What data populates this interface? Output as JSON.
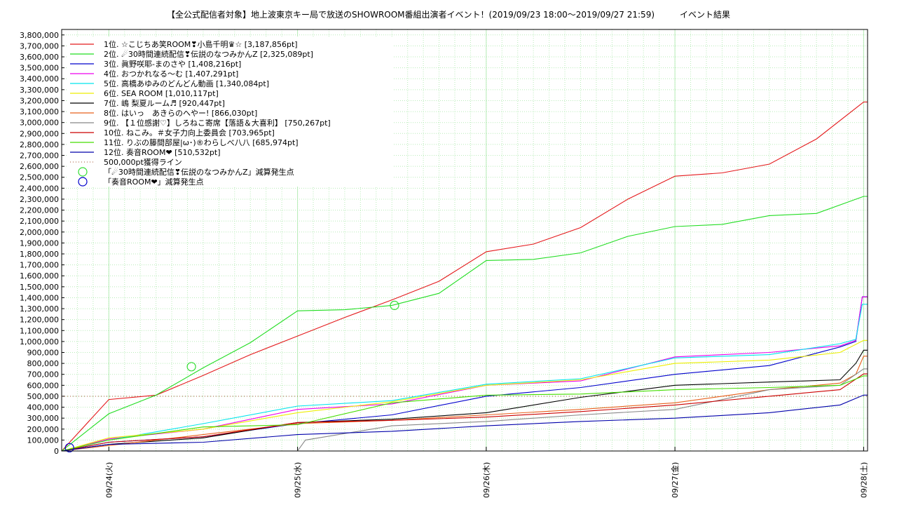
{
  "chart_data": {
    "type": "line",
    "title": "【全公式配信者対象】地上波東京キー局で放送のSHOWROOM番組出演者イベント！(2019/09/23 18:00～2019/09/27 21:59)　　　イベント結果",
    "xlabel": "",
    "ylabel": "",
    "ylim": [
      0,
      3850000
    ],
    "xlim": [
      "2019-09-23 18:00",
      "2019-09-28 00:30"
    ],
    "grid": true,
    "legend_position": "top-left",
    "y_ticks": [
      "0",
      "100,000",
      "200,000",
      "300,000",
      "400,000",
      "500,000",
      "600,000",
      "700,000",
      "800,000",
      "900,000",
      "1,000,000",
      "1,100,000",
      "1,200,000",
      "1,300,000",
      "1,400,000",
      "1,500,000",
      "1,600,000",
      "1,700,000",
      "1,800,000",
      "1,900,000",
      "2,000,000",
      "2,100,000",
      "2,200,000",
      "2,300,000",
      "2,400,000",
      "2,500,000",
      "2,600,000",
      "2,700,000",
      "2,800,000",
      "2,900,000",
      "3,000,000",
      "3,100,000",
      "3,200,000",
      "3,300,000",
      "3,400,000",
      "3,500,000",
      "3,600,000",
      "3,700,000",
      "3,800,000"
    ],
    "x_ticks": [
      {
        "value": "2019-09-24 00:00",
        "label": "09/24(火)"
      },
      {
        "value": "2019-09-25 00:00",
        "label": "09/25(水)"
      },
      {
        "value": "2019-09-26 00:00",
        "label": "09/26(木)"
      },
      {
        "value": "2019-09-27 00:00",
        "label": "09/27(金)"
      },
      {
        "value": "2019-09-28 00:00",
        "label": "09/28(土)"
      }
    ],
    "series": [
      {
        "name": "1位. ☆こじちあ笑ROOM❣小島千明♛☆ [3,187,856pt]",
        "color": "#e41a1c",
        "x": [
          "2019-09-23 18:00",
          "2019-09-24 00:00",
          "2019-09-24 06:00",
          "2019-09-24 12:00",
          "2019-09-24 18:00",
          "2019-09-25 00:00",
          "2019-09-25 06:00",
          "2019-09-25 12:00",
          "2019-09-25 18:00",
          "2019-09-26 00:00",
          "2019-09-26 06:00",
          "2019-09-26 12:00",
          "2019-09-26 18:00",
          "2019-09-27 00:00",
          "2019-09-27 06:00",
          "2019-09-27 12:00",
          "2019-09-27 18:00",
          "2019-09-28 00:00",
          "2019-09-28 00:30"
        ],
        "y": [
          0,
          470000,
          510000,
          690000,
          880000,
          1050000,
          1220000,
          1380000,
          1550000,
          1820000,
          1890000,
          2040000,
          2300000,
          2510000,
          2540000,
          2620000,
          2850000,
          3187856,
          3187856
        ]
      },
      {
        "name": "2位. ☄30時間連続配信❣伝説のなつみかんZ [2,325,089pt]",
        "color": "#22dd22",
        "x": [
          "2019-09-23 18:00",
          "2019-09-24 00:00",
          "2019-09-24 06:00",
          "2019-09-24 12:00",
          "2019-09-24 18:00",
          "2019-09-25 00:00",
          "2019-09-25 06:00",
          "2019-09-25 12:00",
          "2019-09-25 18:00",
          "2019-09-26 00:00",
          "2019-09-26 06:00",
          "2019-09-26 12:00",
          "2019-09-26 18:00",
          "2019-09-27 00:00",
          "2019-09-27 06:00",
          "2019-09-27 12:00",
          "2019-09-27 18:00",
          "2019-09-28 00:00",
          "2019-09-28 00:30"
        ],
        "y": [
          0,
          340000,
          510000,
          760000,
          990000,
          1280000,
          1290000,
          1330000,
          1440000,
          1740000,
          1750000,
          1810000,
          1960000,
          2050000,
          2070000,
          2150000,
          2170000,
          2325089,
          2325089
        ]
      },
      {
        "name": "3位. 眞野咲耶-まのさや [1,408,216pt]",
        "color": "#0000cc",
        "x": [
          "2019-09-23 18:00",
          "2019-09-24 00:00",
          "2019-09-24 12:00",
          "2019-09-25 00:00",
          "2019-09-25 12:00",
          "2019-09-26 00:00",
          "2019-09-26 12:00",
          "2019-09-27 00:00",
          "2019-09-27 12:00",
          "2019-09-27 21:00",
          "2019-09-27 23:00",
          "2019-09-27 23:50",
          "2019-09-28 00:30"
        ],
        "y": [
          0,
          80000,
          130000,
          250000,
          330000,
          500000,
          580000,
          700000,
          780000,
          950000,
          1000000,
          1408216,
          1408216
        ]
      },
      {
        "name": "4位. おつかれなる〜む [1,407,291pt]",
        "color": "#ee00ee",
        "x": [
          "2019-09-23 18:00",
          "2019-09-24 00:00",
          "2019-09-24 12:00",
          "2019-09-25 00:00",
          "2019-09-25 12:00",
          "2019-09-26 00:00",
          "2019-09-26 12:00",
          "2019-09-27 00:00",
          "2019-09-27 12:00",
          "2019-09-27 21:00",
          "2019-09-27 23:00",
          "2019-09-27 23:50",
          "2019-09-28 00:30"
        ],
        "y": [
          0,
          110000,
          200000,
          380000,
          430000,
          600000,
          640000,
          860000,
          900000,
          960000,
          1010000,
          1407291,
          1407291
        ]
      },
      {
        "name": "5位. 高橋あゆみのどんどん動画 [1,340,084pt]",
        "color": "#00e5ee",
        "x": [
          "2019-09-23 18:00",
          "2019-09-24 00:00",
          "2019-09-24 12:00",
          "2019-09-25 00:00",
          "2019-09-25 12:00",
          "2019-09-26 00:00",
          "2019-09-26 12:00",
          "2019-09-27 00:00",
          "2019-09-27 12:00",
          "2019-09-27 21:00",
          "2019-09-27 23:00",
          "2019-09-27 23:50",
          "2019-09-28 00:30"
        ],
        "y": [
          0,
          100000,
          250000,
          410000,
          460000,
          610000,
          660000,
          850000,
          880000,
          980000,
          1020000,
          1340084,
          1340084
        ]
      },
      {
        "name": "6位. SEA ROOM [1,010,117pt]",
        "color": "#eeee00",
        "x": [
          "2019-09-23 18:00",
          "2019-09-24 00:00",
          "2019-09-24 12:00",
          "2019-09-25 00:00",
          "2019-09-25 12:00",
          "2019-09-26 00:00",
          "2019-09-26 12:00",
          "2019-09-27 00:00",
          "2019-09-27 12:00",
          "2019-09-27 21:00",
          "2019-09-28 00:00",
          "2019-09-28 00:30"
        ],
        "y": [
          0,
          120000,
          200000,
          350000,
          450000,
          600000,
          650000,
          800000,
          830000,
          900000,
          1010117,
          1010117
        ]
      },
      {
        "name": "7位. 嶋 梨夏ルーム♬ [920,447pt]",
        "color": "#000000",
        "x": [
          "2019-09-23 18:00",
          "2019-09-24 00:00",
          "2019-09-24 12:00",
          "2019-09-25 00:00",
          "2019-09-25 12:00",
          "2019-09-26 00:00",
          "2019-09-26 12:00",
          "2019-09-27 00:00",
          "2019-09-27 12:00",
          "2019-09-27 21:00",
          "2019-09-27 23:00",
          "2019-09-28 00:00",
          "2019-09-28 00:30"
        ],
        "y": [
          0,
          60000,
          120000,
          260000,
          290000,
          350000,
          490000,
          600000,
          630000,
          650000,
          800000,
          920447,
          920447
        ]
      },
      {
        "name": "8位. はいっ　あきらのへやー! [866,030pt]",
        "color": "#e8601c",
        "x": [
          "2019-09-23 18:00",
          "2019-09-24 00:00",
          "2019-09-24 12:00",
          "2019-09-25 00:00",
          "2019-09-25 12:00",
          "2019-09-26 00:00",
          "2019-09-26 12:00",
          "2019-09-27 00:00",
          "2019-09-27 12:00",
          "2019-09-27 21:00",
          "2019-09-27 23:00",
          "2019-09-28 00:00",
          "2019-09-28 00:30"
        ],
        "y": [
          0,
          50000,
          150000,
          250000,
          280000,
          330000,
          380000,
          440000,
          560000,
          620000,
          700000,
          866030,
          866030
        ]
      },
      {
        "name": "9位. 【１位感謝♡】しろねこ寄席【落語＆大喜利】 [750,267pt]",
        "color": "#888888",
        "x": [
          "2019-09-23 18:00",
          "2019-09-25 00:00",
          "2019-09-25 01:00",
          "2019-09-25 12:00",
          "2019-09-26 00:00",
          "2019-09-26 12:00",
          "2019-09-27 00:00",
          "2019-09-27 12:00",
          "2019-09-27 21:00",
          "2019-09-28 00:00",
          "2019-09-28 00:30"
        ],
        "y": [
          0,
          0,
          100000,
          230000,
          270000,
          330000,
          380000,
          560000,
          600000,
          750267,
          750267
        ]
      },
      {
        "name": "10位. ねこみ。＃女子力向上委員会 [703,965pt]",
        "color": "#cc0000",
        "x": [
          "2019-09-23 18:00",
          "2019-09-24 00:00",
          "2019-09-24 12:00",
          "2019-09-25 00:00",
          "2019-09-25 12:00",
          "2019-09-26 00:00",
          "2019-09-26 12:00",
          "2019-09-27 00:00",
          "2019-09-27 12:00",
          "2019-09-27 21:00",
          "2019-09-28 00:00",
          "2019-09-28 00:30"
        ],
        "y": [
          0,
          80000,
          130000,
          260000,
          280000,
          310000,
          360000,
          420000,
          500000,
          560000,
          703965,
          703965
        ]
      },
      {
        "name": "11位. りぶの籐間部屋|ω･)®わらしべ八八 [685,974pt]",
        "color": "#44dd00",
        "x": [
          "2019-09-23 18:00",
          "2019-09-24 00:00",
          "2019-09-24 12:00",
          "2019-09-25 00:00",
          "2019-09-25 12:00",
          "2019-09-26 00:00",
          "2019-09-26 12:00",
          "2019-09-27 00:00",
          "2019-09-27 12:00",
          "2019-09-27 21:00",
          "2019-09-28 00:00",
          "2019-09-28 00:30"
        ],
        "y": [
          0,
          100000,
          220000,
          240000,
          440000,
          510000,
          520000,
          560000,
          580000,
          600000,
          685974,
          685974
        ]
      },
      {
        "name": "12位. 奏音ROOM❤ [510,532pt]",
        "color": "#0000aa",
        "x": [
          "2019-09-23 18:00",
          "2019-09-24 00:00",
          "2019-09-24 12:00",
          "2019-09-25 00:00",
          "2019-09-25 12:00",
          "2019-09-26 00:00",
          "2019-09-26 12:00",
          "2019-09-27 00:00",
          "2019-09-27 12:00",
          "2019-09-27 21:00",
          "2019-09-28 00:00",
          "2019-09-28 00:30"
        ],
        "y": [
          0,
          60000,
          80000,
          150000,
          180000,
          230000,
          270000,
          300000,
          350000,
          420000,
          510532,
          510532
        ]
      }
    ],
    "reference_line": {
      "name": "500,000pt獲得ライン",
      "color": "#a0522d",
      "y": 500000
    },
    "markers": [
      {
        "name": "「☄30時間連続配信❣伝説のなつみかんZ」減算発生点",
        "color": "#33dd33",
        "points": [
          {
            "x": "2019-09-24 10:30",
            "y": 770000
          },
          {
            "x": "2019-09-25 12:20",
            "y": 1330000
          }
        ]
      },
      {
        "name": "「奏音ROOM❤」減算発生点",
        "color": "#0000cc",
        "points": [
          {
            "x": "2019-09-23 19:00",
            "y": 30000
          }
        ]
      }
    ]
  }
}
